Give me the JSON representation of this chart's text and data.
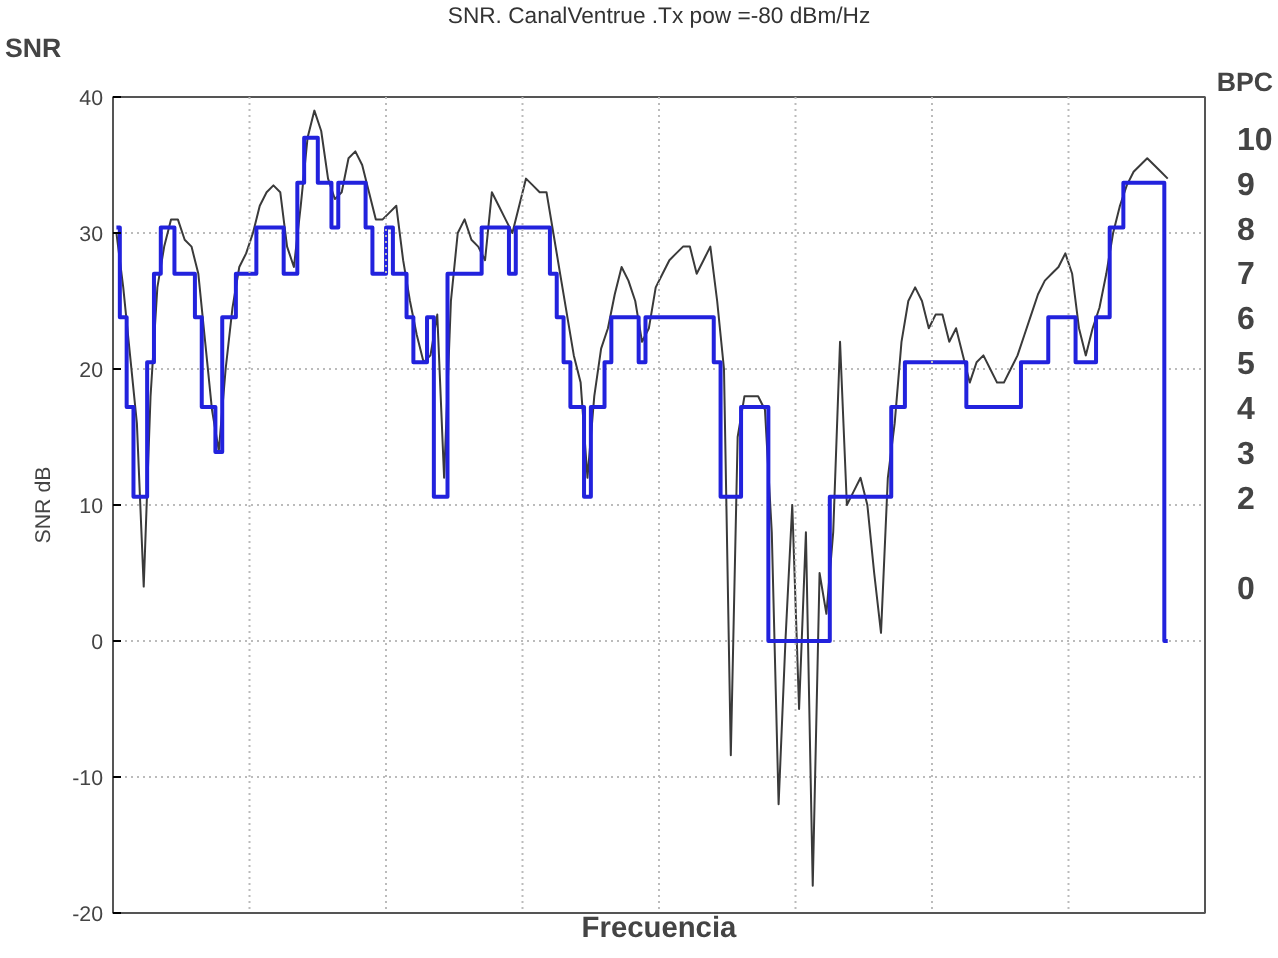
{
  "chart_data": {
    "type": "line",
    "title": "SNR. CanalVentrue .Tx pow =-80 dBm/Hz",
    "xlabel": "Frecuencia",
    "ylabel": "SNR dB",
    "y2label": "BPC",
    "annotations": [
      "SNR"
    ],
    "categories": [
      null,
      null,
      null,
      null,
      null,
      null,
      null,
      null,
      null,
      null,
      null,
      null,
      null,
      null,
      null,
      null,
      null,
      null,
      null,
      null,
      null,
      null,
      null,
      null,
      null,
      null,
      null,
      null,
      null,
      null,
      null,
      null,
      null,
      null,
      null,
      null,
      null,
      null,
      null,
      null,
      null,
      null,
      null,
      null,
      null,
      null,
      null,
      null,
      null,
      null,
      null,
      null,
      null,
      null,
      null,
      null,
      null,
      null,
      null,
      null,
      null,
      null,
      null,
      null,
      null,
      null,
      null,
      null,
      null,
      null,
      null,
      null,
      null,
      null,
      null,
      null,
      null,
      null,
      null,
      null,
      null,
      null,
      null,
      null,
      null,
      null,
      null,
      null,
      null,
      null,
      null,
      null,
      null,
      null,
      null,
      null,
      null,
      null,
      null,
      null,
      null,
      null,
      null,
      null,
      null,
      null,
      null,
      null,
      null,
      null,
      null,
      null,
      null,
      null,
      null,
      null,
      null,
      null,
      null,
      null,
      null,
      null,
      null,
      null,
      null,
      null,
      null,
      null,
      null,
      null,
      null,
      null,
      null,
      null,
      null,
      null,
      null,
      null,
      null,
      null,
      null,
      null,
      null,
      null,
      null,
      null,
      null,
      null,
      null,
      null,
      null,
      null,
      null,
      null,
      null
    ],
    "ylim": [
      -20,
      40
    ],
    "yticks": [
      -20,
      -10,
      0,
      10,
      20,
      30,
      40
    ],
    "y2lim": [
      -7.27,
      10.91
    ],
    "y2ticks": [
      0,
      2,
      3,
      4,
      5,
      6,
      7,
      8,
      9,
      10
    ],
    "grid": true,
    "series": [
      {
        "color": "#3a3a3a",
        "values": [
          30,
          26,
          21,
          16,
          4,
          18,
          26,
          29,
          31,
          31,
          29.5,
          29,
          27,
          22,
          17,
          14,
          20,
          24.5,
          27.5,
          28.5,
          30,
          32,
          33,
          33.5,
          33,
          29,
          27.5,
          32,
          37,
          39,
          37.5,
          34,
          32.5,
          33,
          35.5,
          36,
          35,
          33,
          31,
          31,
          31.5,
          32,
          28,
          25,
          22.5,
          20.5,
          21,
          24,
          12,
          25,
          30,
          31,
          29.5,
          29,
          28,
          33,
          32,
          31,
          30,
          32,
          34,
          33.5,
          33,
          33,
          30,
          27,
          24,
          21,
          19,
          12,
          18,
          21.5,
          23,
          25.5,
          27.5,
          26.5,
          25,
          22,
          23,
          26,
          27,
          28,
          28.5,
          29,
          29,
          27,
          28,
          29,
          25,
          20,
          -8.4,
          15,
          18,
          18,
          18,
          17,
          8,
          -12,
          0,
          10,
          -5,
          8,
          -18,
          5,
          2,
          8,
          22,
          10,
          11,
          12,
          10,
          5,
          0.6,
          12,
          16,
          22,
          25,
          26,
          25,
          23,
          24,
          24,
          22,
          23,
          21,
          19,
          20.5,
          21,
          20,
          19,
          19,
          20,
          21,
          22.5,
          24,
          25.5,
          26.5,
          27,
          27.5,
          28.5,
          27,
          23,
          21,
          23,
          24.5,
          27,
          30,
          32,
          33.5,
          34.5,
          35,
          35.5,
          35,
          34.5,
          34
        ]
      },
      {
        "type": "step",
        "color": "#2222dd",
        "values": [
          30.4,
          23.8,
          17.2,
          10.6,
          10.6,
          20.5,
          27,
          30.4,
          30.4,
          27,
          27,
          27,
          23.8,
          17.2,
          17.2,
          13.9,
          23.8,
          23.8,
          27,
          27,
          27,
          30.4,
          30.4,
          30.4,
          30.4,
          27,
          27,
          33.7,
          37,
          37,
          33.7,
          33.7,
          30.4,
          33.7,
          33.7,
          33.7,
          33.7,
          30.4,
          27,
          27,
          30.4,
          27,
          27,
          23.8,
          20.5,
          20.5,
          23.8,
          10.6,
          10.6,
          27,
          27,
          27,
          27,
          27,
          30.4,
          30.4,
          30.4,
          30.4,
          27,
          30.4,
          30.4,
          30.4,
          30.4,
          30.4,
          27,
          23.8,
          20.5,
          17.2,
          17.2,
          10.6,
          17.2,
          17.2,
          20.5,
          23.8,
          23.8,
          23.8,
          23.8,
          20.5,
          23.8,
          23.8,
          23.8,
          23.8,
          23.8,
          23.8,
          23.8,
          23.8,
          23.8,
          23.8,
          20.5,
          10.6,
          10.6,
          10.6,
          17.2,
          17.2,
          17.2,
          17.2,
          0,
          0,
          0,
          0,
          0,
          0,
          0,
          0,
          0,
          10.6,
          10.6,
          10.6,
          10.6,
          10.6,
          10.6,
          10.6,
          10.6,
          10.6,
          17.2,
          17.2,
          20.5,
          20.5,
          20.5,
          20.5,
          20.5,
          20.5,
          20.5,
          20.5,
          20.5,
          17.2,
          17.2,
          17.2,
          17.2,
          17.2,
          17.2,
          17.2,
          17.2,
          20.5,
          20.5,
          20.5,
          20.5,
          23.8,
          23.8,
          23.8,
          23.8,
          20.5,
          20.5,
          20.5,
          23.8,
          23.8,
          30.4,
          30.4,
          33.7,
          33.7,
          33.7,
          33.7,
          33.7,
          33.7,
          0
        ]
      }
    ]
  }
}
